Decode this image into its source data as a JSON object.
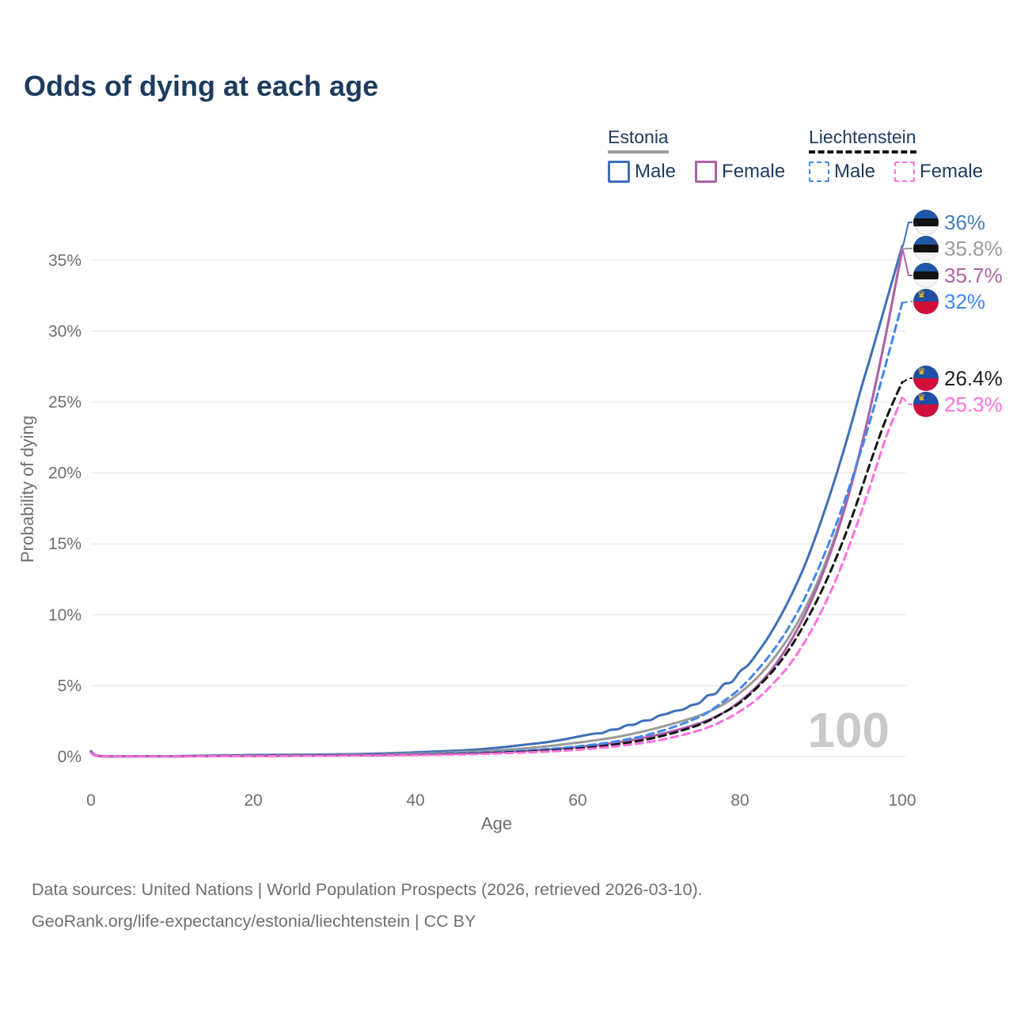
{
  "title": "Odds of dying at each age",
  "legend": {
    "groups": [
      {
        "id": "estonia",
        "label": "Estonia",
        "line_style": "solid",
        "underline_color": "#9e9e9e",
        "items": [
          {
            "id": "estonia-male",
            "label": "Male",
            "color": "#3e6fb8",
            "dashed": false
          },
          {
            "id": "estonia-female",
            "label": "Female",
            "color": "#ab62a6",
            "dashed": false
          }
        ]
      },
      {
        "id": "liechtenstein",
        "label": "Liechtenstein",
        "line_style": "dashed",
        "underline_color": "#141414",
        "items": [
          {
            "id": "liechtenstein-male",
            "label": "Male",
            "color": "#4287ee",
            "dashed": true
          },
          {
            "id": "liechtenstein-female",
            "label": "Female",
            "color": "#ff70dc",
            "dashed": true
          }
        ]
      }
    ]
  },
  "chart_data": {
    "type": "line",
    "title": "Odds of dying at each age",
    "xlabel": "Age",
    "ylabel": "Probability of dying",
    "xlim": [
      0,
      100
    ],
    "ylim": [
      0,
      37.5
    ],
    "x_ticks": [
      0,
      20,
      40,
      60,
      80,
      100
    ],
    "y_ticks": [
      {
        "value": 0,
        "label": "0%"
      },
      {
        "value": 5,
        "label": "5%"
      },
      {
        "value": 10,
        "label": "10%"
      },
      {
        "value": 15,
        "label": "15%"
      },
      {
        "value": 20,
        "label": "20%"
      },
      {
        "value": 25,
        "label": "25%"
      },
      {
        "value": 30,
        "label": "30%"
      },
      {
        "value": 35,
        "label": "35%"
      }
    ],
    "grid": true,
    "legend_position": "top-right",
    "watermark": "100",
    "series": [
      {
        "id": "estonia-male",
        "country": "Estonia",
        "sex": "Male",
        "color": "#3e6fb8",
        "dashed": false,
        "end_label": {
          "text": "36%",
          "color": "#4a7ebc",
          "flag": "ee"
        },
        "points": [
          [
            0,
            0.38
          ],
          [
            1,
            0.05
          ],
          [
            5,
            0.03
          ],
          [
            10,
            0.03
          ],
          [
            15,
            0.07
          ],
          [
            20,
            0.11
          ],
          [
            25,
            0.13
          ],
          [
            30,
            0.16
          ],
          [
            35,
            0.21
          ],
          [
            40,
            0.3
          ],
          [
            45,
            0.42
          ],
          [
            48,
            0.52
          ],
          [
            50,
            0.62
          ],
          [
            52,
            0.74
          ],
          [
            54,
            0.87
          ],
          [
            56,
            1.0
          ],
          [
            58,
            1.18
          ],
          [
            60,
            1.4
          ],
          [
            62,
            1.62
          ],
          [
            63,
            1.66
          ],
          [
            64,
            1.88
          ],
          [
            65,
            1.94
          ],
          [
            66,
            2.2
          ],
          [
            67,
            2.26
          ],
          [
            68,
            2.52
          ],
          [
            69,
            2.58
          ],
          [
            70,
            2.88
          ],
          [
            71,
            3.02
          ],
          [
            72,
            3.22
          ],
          [
            73,
            3.32
          ],
          [
            74,
            3.62
          ],
          [
            75,
            3.78
          ],
          [
            76,
            4.3
          ],
          [
            77,
            4.44
          ],
          [
            78,
            5.1
          ],
          [
            79,
            5.26
          ],
          [
            80,
            6.0
          ],
          [
            81,
            6.45
          ],
          [
            82,
            7.2
          ],
          [
            83,
            8.0
          ],
          [
            84,
            8.9
          ],
          [
            85,
            9.9
          ],
          [
            86,
            11.0
          ],
          [
            87,
            12.2
          ],
          [
            88,
            13.5
          ],
          [
            89,
            15.0
          ],
          [
            90,
            16.6
          ],
          [
            91,
            18.3
          ],
          [
            92,
            20.1
          ],
          [
            93,
            22.0
          ],
          [
            94,
            24.0
          ],
          [
            95,
            26.1
          ],
          [
            96,
            28.0
          ],
          [
            97,
            30.0
          ],
          [
            98,
            32.0
          ],
          [
            99,
            34.0
          ],
          [
            100,
            36.0
          ]
        ]
      },
      {
        "id": "estonia-both",
        "country": "Estonia",
        "sex": "Both",
        "color": "#9a9a9a",
        "dashed": false,
        "end_label": {
          "text": "35.8%",
          "color": "#9b9b9b",
          "flag": "ee"
        },
        "points": [
          [
            0,
            0.32
          ],
          [
            1,
            0.04
          ],
          [
            5,
            0.02
          ],
          [
            10,
            0.02
          ],
          [
            15,
            0.05
          ],
          [
            20,
            0.08
          ],
          [
            25,
            0.09
          ],
          [
            30,
            0.11
          ],
          [
            35,
            0.15
          ],
          [
            40,
            0.21
          ],
          [
            45,
            0.3
          ],
          [
            50,
            0.44
          ],
          [
            55,
            0.66
          ],
          [
            60,
            0.98
          ],
          [
            65,
            1.4
          ],
          [
            70,
            2.05
          ],
          [
            75,
            2.9
          ],
          [
            78,
            3.7
          ],
          [
            80,
            4.5
          ],
          [
            82,
            5.5
          ],
          [
            84,
            6.8
          ],
          [
            86,
            8.4
          ],
          [
            88,
            10.4
          ],
          [
            90,
            12.9
          ],
          [
            92,
            16.0
          ],
          [
            94,
            19.8
          ],
          [
            96,
            24.4
          ],
          [
            98,
            29.8
          ],
          [
            100,
            35.8
          ]
        ]
      },
      {
        "id": "estonia-female",
        "country": "Estonia",
        "sex": "Female",
        "color": "#ab62a6",
        "dashed": false,
        "end_label": {
          "text": "35.7%",
          "color": "#b163a3",
          "flag": "ee"
        },
        "points": [
          [
            0,
            0.3
          ],
          [
            1,
            0.04
          ],
          [
            5,
            0.015
          ],
          [
            10,
            0.015
          ],
          [
            15,
            0.03
          ],
          [
            20,
            0.04
          ],
          [
            25,
            0.05
          ],
          [
            30,
            0.07
          ],
          [
            35,
            0.1
          ],
          [
            40,
            0.14
          ],
          [
            45,
            0.2
          ],
          [
            50,
            0.3
          ],
          [
            55,
            0.45
          ],
          [
            60,
            0.68
          ],
          [
            65,
            1.0
          ],
          [
            70,
            1.55
          ],
          [
            75,
            2.35
          ],
          [
            78,
            3.1
          ],
          [
            80,
            3.9
          ],
          [
            82,
            4.9
          ],
          [
            84,
            6.2
          ],
          [
            86,
            7.9
          ],
          [
            88,
            10.0
          ],
          [
            90,
            12.6
          ],
          [
            92,
            15.8
          ],
          [
            94,
            19.7
          ],
          [
            96,
            24.4
          ],
          [
            98,
            29.8
          ],
          [
            100,
            35.7
          ]
        ]
      },
      {
        "id": "liechtenstein-male",
        "country": "Liechtenstein",
        "sex": "Male",
        "color": "#4287ee",
        "dashed": true,
        "end_label": {
          "text": "32%",
          "color": "#4287ee",
          "flag": "li"
        },
        "points": [
          [
            0,
            0.28
          ],
          [
            1,
            0.03
          ],
          [
            5,
            0.02
          ],
          [
            10,
            0.02
          ],
          [
            15,
            0.05
          ],
          [
            20,
            0.08
          ],
          [
            25,
            0.09
          ],
          [
            30,
            0.1
          ],
          [
            35,
            0.12
          ],
          [
            40,
            0.16
          ],
          [
            45,
            0.22
          ],
          [
            50,
            0.32
          ],
          [
            55,
            0.48
          ],
          [
            60,
            0.72
          ],
          [
            65,
            1.1
          ],
          [
            70,
            1.75
          ],
          [
            75,
            2.8
          ],
          [
            78,
            3.9
          ],
          [
            80,
            4.8
          ],
          [
            82,
            6.0
          ],
          [
            84,
            7.4
          ],
          [
            86,
            9.1
          ],
          [
            88,
            11.2
          ],
          [
            90,
            13.7
          ],
          [
            92,
            16.6
          ],
          [
            94,
            19.9
          ],
          [
            96,
            23.6
          ],
          [
            98,
            27.7
          ],
          [
            100,
            32.0
          ]
        ]
      },
      {
        "id": "liechtenstein-both",
        "country": "Liechtenstein",
        "sex": "Both",
        "color": "#141414",
        "dashed": true,
        "end_label": {
          "text": "26.4%",
          "color": "#1f1f1f",
          "flag": "li"
        },
        "points": [
          [
            0,
            0.26
          ],
          [
            1,
            0.03
          ],
          [
            5,
            0.015
          ],
          [
            10,
            0.015
          ],
          [
            15,
            0.04
          ],
          [
            20,
            0.06
          ],
          [
            25,
            0.07
          ],
          [
            30,
            0.08
          ],
          [
            35,
            0.1
          ],
          [
            40,
            0.13
          ],
          [
            45,
            0.18
          ],
          [
            50,
            0.26
          ],
          [
            55,
            0.38
          ],
          [
            60,
            0.57
          ],
          [
            65,
            0.88
          ],
          [
            70,
            1.4
          ],
          [
            75,
            2.25
          ],
          [
            78,
            3.1
          ],
          [
            80,
            3.8
          ],
          [
            82,
            4.8
          ],
          [
            84,
            6.0
          ],
          [
            86,
            7.5
          ],
          [
            88,
            9.4
          ],
          [
            90,
            11.6
          ],
          [
            92,
            14.2
          ],
          [
            94,
            17.2
          ],
          [
            96,
            20.6
          ],
          [
            98,
            23.8
          ],
          [
            100,
            26.4
          ]
        ]
      },
      {
        "id": "liechtenstein-female",
        "country": "Liechtenstein",
        "sex": "Female",
        "color": "#ff70dc",
        "dashed": true,
        "end_label": {
          "text": "25.3%",
          "color": "#ff70dc",
          "flag": "li"
        },
        "points": [
          [
            0,
            0.25
          ],
          [
            1,
            0.03
          ],
          [
            5,
            0.01
          ],
          [
            10,
            0.01
          ],
          [
            15,
            0.03
          ],
          [
            20,
            0.04
          ],
          [
            25,
            0.05
          ],
          [
            30,
            0.06
          ],
          [
            35,
            0.08
          ],
          [
            40,
            0.11
          ],
          [
            45,
            0.15
          ],
          [
            50,
            0.22
          ],
          [
            55,
            0.32
          ],
          [
            60,
            0.48
          ],
          [
            65,
            0.74
          ],
          [
            70,
            1.15
          ],
          [
            75,
            1.85
          ],
          [
            78,
            2.55
          ],
          [
            80,
            3.2
          ],
          [
            82,
            4.0
          ],
          [
            84,
            5.1
          ],
          [
            86,
            6.4
          ],
          [
            88,
            8.1
          ],
          [
            90,
            10.2
          ],
          [
            92,
            12.7
          ],
          [
            94,
            15.7
          ],
          [
            96,
            19.0
          ],
          [
            98,
            22.5
          ],
          [
            100,
            25.3
          ]
        ]
      }
    ]
  },
  "footer": {
    "line1": "Data sources: United Nations | World Population Prospects (2026, retrieved 2026-03-10).",
    "line2": "GeoRank.org/life-expectancy/estonia/liechtenstein | CC BY"
  }
}
